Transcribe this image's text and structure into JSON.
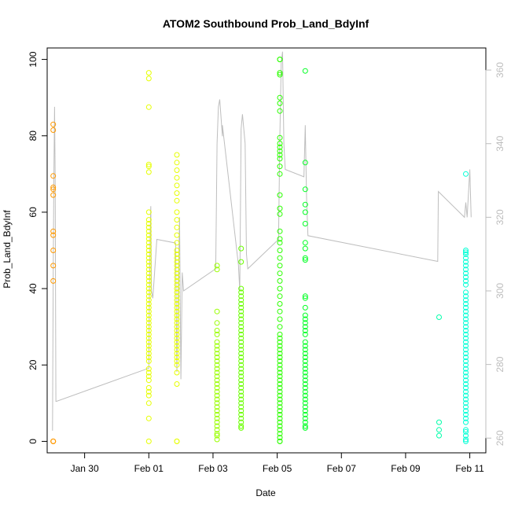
{
  "chart_data": {
    "type": "scatter",
    "title": "ATOM2 Southbound Prob_Land_BdyInf",
    "xlabel": "Date",
    "ylabel": "Prob_Land_BdyInf",
    "xlim": [
      "2014-01-28T20:00",
      "2014-02-11T12:00"
    ],
    "ylim": [
      -3,
      103
    ],
    "y_ticks": [
      0,
      20,
      40,
      60,
      80,
      100
    ],
    "x_ticks": [
      {
        "date": "2014-01-30",
        "label": "Jan 30"
      },
      {
        "date": "2014-02-01",
        "label": "Feb 01"
      },
      {
        "date": "2014-02-03",
        "label": "Feb 03"
      },
      {
        "date": "2014-02-05",
        "label": "Feb 05"
      },
      {
        "date": "2014-02-07",
        "label": "Feb 07"
      },
      {
        "date": "2014-02-09",
        "label": "Feb 09"
      },
      {
        "date": "2014-02-11",
        "label": "Feb 11"
      }
    ],
    "y2lim": [
      256,
      366
    ],
    "y2_ticks": [
      260,
      280,
      300,
      320,
      340,
      360
    ],
    "grid": false,
    "marker": "open-circle",
    "point_groups": [
      {
        "date": "2014-01-29T00:30",
        "color": "#FF9900",
        "values": [
          83,
          81.5,
          69.5,
          66.5,
          66,
          64.5,
          55,
          54,
          50,
          46,
          42,
          0,
          0,
          0
        ]
      },
      {
        "date": "2014-02-01T00:00",
        "color": "#E6FF00",
        "values": [
          96.5,
          95,
          87.5,
          72.5,
          72,
          70.5,
          60,
          58,
          57,
          56,
          55,
          54,
          53,
          52,
          51,
          50,
          49,
          48,
          47,
          46,
          45,
          44,
          43,
          42,
          41,
          40,
          39,
          38,
          37,
          36,
          35,
          34,
          33,
          32,
          31,
          30,
          29,
          28,
          27,
          26,
          25,
          24,
          23,
          22,
          21,
          19,
          18,
          17,
          16,
          14,
          13,
          12,
          10,
          6,
          0
        ]
      },
      {
        "date": "2014-02-01T21:00",
        "color": "#E6FF00",
        "values": [
          75,
          73,
          71,
          69,
          67,
          65,
          63,
          60,
          58,
          56,
          54,
          52,
          50,
          49,
          48,
          47,
          46,
          45,
          44,
          43,
          42,
          41,
          40,
          39,
          38,
          37,
          36,
          35,
          34,
          33,
          32,
          31,
          30,
          29,
          28,
          27,
          26,
          25,
          24,
          23,
          22,
          21,
          20,
          18,
          15,
          0,
          0
        ]
      },
      {
        "date": "2014-02-03T03:00",
        "color": "#9AFF00",
        "values": [
          46,
          45,
          34,
          31,
          29,
          28,
          26,
          25,
          24,
          23,
          22,
          21,
          20,
          19,
          18,
          17,
          16,
          15,
          14,
          13,
          12,
          11,
          10,
          9,
          8,
          7,
          6,
          5,
          4,
          3,
          2,
          1.5,
          0.5
        ]
      },
      {
        "date": "2014-02-03T21:00",
        "color": "#6AFF00",
        "values": [
          50.5,
          47,
          40,
          39,
          38,
          37,
          36,
          35,
          34,
          33,
          32,
          31,
          30,
          29,
          28,
          27,
          26,
          25,
          24,
          23,
          22,
          21,
          20,
          19,
          18,
          17,
          16,
          15,
          14,
          13,
          12,
          11,
          10,
          9,
          8,
          7,
          6,
          5,
          4,
          3.5
        ]
      },
      {
        "date": "2014-02-05T02:00",
        "color": "#2BFF00",
        "values": [
          100,
          100,
          96.5,
          96,
          90,
          88.5,
          86.5,
          79.5,
          78,
          77,
          76,
          75,
          74,
          72,
          70,
          64.5,
          61,
          59.5,
          55,
          53,
          52,
          50,
          48,
          46,
          44,
          42,
          40,
          38,
          36,
          34,
          32,
          30,
          28,
          27,
          26,
          25,
          24,
          23,
          22,
          21,
          20,
          19,
          18,
          17,
          16,
          15,
          14,
          13,
          12,
          11,
          10,
          9,
          8,
          7,
          6,
          5,
          4,
          3,
          2,
          1,
          0,
          0
        ]
      },
      {
        "date": "2014-02-05T21:00",
        "color": "#00FF22",
        "values": [
          97,
          73,
          66,
          62,
          60,
          57,
          52,
          50.5,
          48,
          47.5,
          38,
          37.5,
          35,
          33,
          32,
          31,
          30,
          29,
          28,
          26,
          25,
          24,
          23,
          22,
          21,
          20,
          19,
          18,
          17,
          16,
          15,
          14,
          13,
          12,
          11,
          10,
          9,
          8,
          7,
          6,
          5,
          4,
          3.5
        ]
      },
      {
        "date": "2014-02-10T01:00",
        "color": "#00FFAA",
        "values": [
          32.5,
          5,
          3,
          1.5
        ]
      },
      {
        "date": "2014-02-10T21:00",
        "color": "#00FFD5",
        "values": [
          70,
          50,
          49.5,
          49,
          48,
          47,
          46,
          45,
          44,
          43,
          42,
          41,
          39,
          38,
          37,
          36,
          35,
          34,
          33,
          32,
          31,
          30,
          29,
          28,
          27,
          26,
          25,
          24,
          23,
          22,
          21,
          20,
          19,
          18,
          17,
          16,
          15,
          14,
          13,
          12,
          11,
          10,
          9,
          8,
          7,
          6,
          5,
          3,
          2.5,
          1.5,
          0.5,
          0
        ]
      }
    ],
    "secondary_series": {
      "type": "line",
      "color": "#BEBEBE",
      "points": [
        [
          "2014-01-29T00:00",
          262
        ],
        [
          "2014-01-29T00:30",
          305
        ],
        [
          "2014-01-29T01:00",
          330
        ],
        [
          "2014-01-29T01:30",
          350
        ],
        [
          "2014-01-29T02:00",
          330
        ],
        [
          "2014-01-29T02:30",
          270
        ],
        [
          "2014-01-29T03:00",
          270
        ],
        [
          "2014-02-01T00:00",
          279
        ],
        [
          "2014-02-01T00:30",
          300
        ],
        [
          "2014-02-01T01:00",
          315
        ],
        [
          "2014-02-01T01:30",
          323
        ],
        [
          "2014-02-01T02:00",
          300
        ],
        [
          "2014-02-01T03:00",
          298
        ],
        [
          "2014-02-01T06:00",
          314
        ],
        [
          "2014-02-01T20:00",
          313
        ],
        [
          "2014-02-01T21:00",
          278
        ],
        [
          "2014-02-01T22:00",
          300
        ],
        [
          "2014-02-01T23:00",
          320
        ],
        [
          "2014-02-02T00:00",
          276
        ],
        [
          "2014-02-02T01:00",
          305
        ],
        [
          "2014-02-02T02:00",
          300
        ],
        [
          "2014-02-03T02:00",
          306
        ],
        [
          "2014-02-03T03:00",
          340
        ],
        [
          "2014-02-03T04:00",
          350
        ],
        [
          "2014-02-03T05:00",
          352
        ],
        [
          "2014-02-03T07:00",
          342
        ],
        [
          "2014-02-03T07:00",
          345
        ],
        [
          "2014-02-03T19:00",
          307
        ],
        [
          "2014-02-03T20:00",
          300
        ],
        [
          "2014-02-03T21:00",
          344
        ],
        [
          "2014-02-03T22:00",
          348
        ],
        [
          "2014-02-04T00:00",
          340
        ],
        [
          "2014-02-04T01:00",
          310
        ],
        [
          "2014-02-04T02:00",
          306
        ],
        [
          "2014-02-05T01:00",
          314
        ],
        [
          "2014-02-05T02:00",
          342
        ],
        [
          "2014-02-05T03:00",
          362
        ],
        [
          "2014-02-05T04:00",
          365
        ],
        [
          "2014-02-05T05:00",
          340
        ],
        [
          "2014-02-05T06:00",
          333
        ],
        [
          "2014-02-05T20:00",
          331
        ],
        [
          "2014-02-05T21:00",
          345
        ],
        [
          "2014-02-05T22:00",
          325
        ],
        [
          "2014-02-05T23:00",
          315
        ],
        [
          "2014-02-10T00:00",
          308
        ],
        [
          "2014-02-10T00:30",
          327
        ],
        [
          "2014-02-10T20:00",
          320
        ],
        [
          "2014-02-10T21:00",
          324
        ],
        [
          "2014-02-10T22:00",
          320
        ],
        [
          "2014-02-11T00:00",
          333
        ],
        [
          "2014-02-11T01:00",
          320
        ]
      ]
    }
  }
}
